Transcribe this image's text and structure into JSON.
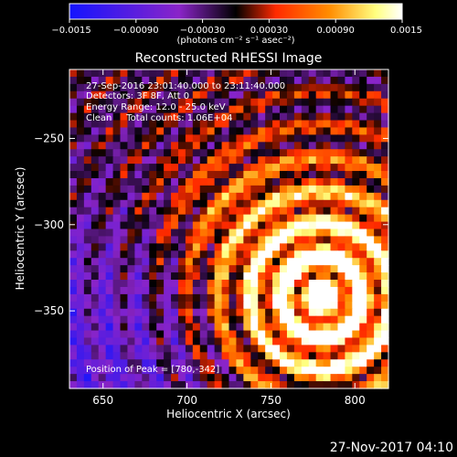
{
  "chart_data": {
    "type": "heatmap",
    "title": "Reconstructed RHESSI Image",
    "xlabel": "Heliocentric X (arcsec)",
    "ylabel": "Heliocentric Y (arcsec)",
    "xlim": [
      630,
      820
    ],
    "ylim": [
      -395,
      -210
    ],
    "x_ticks": [
      650,
      700,
      750,
      800
    ],
    "y_ticks": [
      -250,
      -300,
      -350
    ],
    "colorbar": {
      "range": [
        -0.0015,
        0.0015
      ],
      "ticks": [
        -0.0015,
        -0.0009,
        -0.0003,
        0.0003,
        0.0009,
        0.0015
      ],
      "tick_labels": [
        "−0.0015",
        "−0.00090",
        "−0.00030",
        "0.00030",
        "0.00090",
        "0.0015"
      ],
      "units": "(photons cm⁻² s⁻¹ asec⁻²)",
      "colors": [
        "#1414ff",
        "#8a24c8",
        "#000000",
        "#ff2a00",
        "#ff8c00",
        "#ffff80",
        "#ffffff"
      ]
    },
    "annotations": [
      "27-Sep-2016 23:01:40.000 to 23:11:40.000",
      "Detectors: 3F 8F, Att 0",
      "Energy Range: 12.0 - 25.0 keV",
      "Clean     Total counts: 1.06E+04"
    ],
    "peak_label": "Position of Peak = [780,-342]",
    "peak": [
      780,
      -342
    ],
    "grid": false
  },
  "footer": {
    "timestamp": "27-Nov-2017 04:10"
  }
}
